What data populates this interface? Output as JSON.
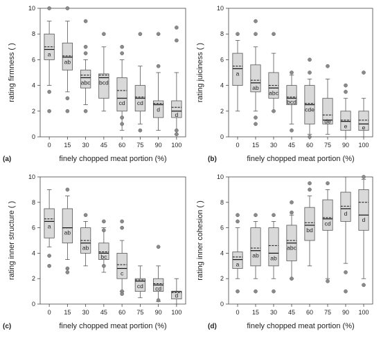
{
  "chart_data": [
    {
      "type": "box",
      "panel": "(a)",
      "ylabel": "rating firmness (  )",
      "xlabel": "finely chopped meat portion (%)",
      "ylim": [
        0,
        10
      ],
      "yticks": [
        0,
        2,
        4,
        6,
        8,
        10
      ],
      "categories": [
        "0",
        "15",
        "30",
        "45",
        "60",
        "75",
        "90",
        "100"
      ],
      "boxes": [
        {
          "q1": 6.0,
          "median": 6.8,
          "q3": 8.0,
          "mean": 7.0,
          "whisker_low": 4.0,
          "whisker_high": 9.0,
          "outliers": [
            10.0,
            3.5,
            2.0
          ],
          "letter": "a"
        },
        {
          "q1": 5.2,
          "median": 6.2,
          "q3": 7.3,
          "mean": 6.3,
          "whisker_low": 3.5,
          "whisker_high": 9.0,
          "outliers": [
            10.0,
            3.0,
            2.0
          ],
          "letter": "ab"
        },
        {
          "q1": 3.8,
          "median": 4.6,
          "q3": 5.2,
          "mean": 4.8,
          "whisker_low": 2.5,
          "whisker_high": 6.0,
          "outliers": [
            9.0,
            7.0,
            6.5,
            2.0
          ],
          "letter": "abc"
        },
        {
          "q1": 3.0,
          "median": 4.6,
          "q3": 4.9,
          "mean": 4.8,
          "whisker_low": 2.0,
          "whisker_high": 7.0,
          "outliers": [
            8.0
          ],
          "letter": "bcd"
        },
        {
          "q1": 2.0,
          "median": 3.0,
          "q3": 4.6,
          "mean": 3.6,
          "whisker_low": 0.5,
          "whisker_high": 6.0,
          "outliers": [
            7.0,
            6.5,
            1.5,
            1.0
          ],
          "letter": "cd"
        },
        {
          "q1": 2.0,
          "median": 3.0,
          "q3": 4.0,
          "mean": 3.1,
          "whisker_low": 1.0,
          "whisker_high": 5.5,
          "outliers": [
            8.0,
            0.5
          ],
          "letter": "cd"
        },
        {
          "q1": 1.5,
          "median": 2.5,
          "q3": 2.8,
          "mean": 2.6,
          "whisker_low": 0.5,
          "whisker_high": 5.0,
          "outliers": [
            8.0,
            5.5
          ],
          "letter": "d"
        },
        {
          "q1": 1.5,
          "median": 2.0,
          "q3": 2.8,
          "mean": 2.3,
          "whisker_low": 0.2,
          "whisker_high": 5.0,
          "outliers": [
            8.5,
            7.5,
            0.5,
            0.2
          ],
          "letter": "d"
        }
      ]
    },
    {
      "type": "box",
      "panel": "(b)",
      "ylabel": "rating juiciness (  )",
      "xlabel": "finely chopped meat portion (%)",
      "ylim": [
        0,
        10
      ],
      "yticks": [
        0,
        2,
        4,
        6,
        8,
        10
      ],
      "categories": [
        "0",
        "15",
        "30",
        "45",
        "60",
        "75",
        "90",
        "100"
      ],
      "boxes": [
        {
          "q1": 4.0,
          "median": 5.3,
          "q3": 6.5,
          "mean": 5.5,
          "whisker_low": 2.0,
          "whisker_high": 7.5,
          "outliers": [
            8.0
          ],
          "letter": "a"
        },
        {
          "q1": 3.5,
          "median": 4.2,
          "q3": 5.6,
          "mean": 4.4,
          "whisker_low": 2.0,
          "whisker_high": 7.0,
          "outliers": [
            9.0,
            8.0,
            1.5,
            1.0
          ],
          "letter": "ab"
        },
        {
          "q1": 3.0,
          "median": 3.8,
          "q3": 5.0,
          "mean": 4.0,
          "whisker_low": 2.0,
          "whisker_high": 6.5,
          "outliers": [
            8.0,
            2.0
          ],
          "letter": "abc"
        },
        {
          "q1": 2.5,
          "median": 3.0,
          "q3": 4.0,
          "mean": 3.1,
          "whisker_low": 1.0,
          "whisker_high": 4.8,
          "outliers": [
            5.0,
            0.5
          ],
          "letter": "bcd"
        },
        {
          "q1": 1.0,
          "median": 2.5,
          "q3": 4.0,
          "mean": 2.6,
          "whisker_low": 0.2,
          "whisker_high": 4.5,
          "outliers": [
            6.0,
            5.0,
            0.0
          ],
          "letter": "cde"
        },
        {
          "q1": 1.0,
          "median": 1.3,
          "q3": 3.0,
          "mean": 1.7,
          "whisker_low": 0.2,
          "whisker_high": 4.5,
          "outliers": [
            5.5
          ],
          "letter": "de"
        },
        {
          "q1": 0.5,
          "median": 1.2,
          "q3": 2.0,
          "mean": 1.3,
          "whisker_low": 0.0,
          "whisker_high": 3.0,
          "outliers": [
            4.0,
            3.5
          ],
          "letter": "e"
        },
        {
          "q1": 0.5,
          "median": 1.0,
          "q3": 2.0,
          "mean": 1.3,
          "whisker_low": 0.0,
          "whisker_high": 3.0,
          "outliers": [
            5.0
          ],
          "letter": "e"
        }
      ]
    },
    {
      "type": "box",
      "panel": "(c)",
      "ylabel": "rating inner structure (  )",
      "xlabel": "finely chopped meat portion (%)",
      "ylim": [
        0,
        10
      ],
      "yticks": [
        0,
        2,
        4,
        6,
        8,
        10
      ],
      "categories": [
        "0",
        "15",
        "30",
        "45",
        "60",
        "75",
        "90",
        "100"
      ],
      "boxes": [
        {
          "q1": 5.2,
          "median": 6.5,
          "q3": 7.5,
          "mean": 6.7,
          "whisker_low": 4.5,
          "whisker_high": 9.0,
          "outliers": [
            3.8,
            3.0
          ],
          "letter": "a"
        },
        {
          "q1": 4.8,
          "median": 6.0,
          "q3": 7.5,
          "mean": 6.0,
          "whisker_low": 3.5,
          "whisker_high": 8.5,
          "outliers": [
            9.0,
            2.8,
            2.5
          ],
          "letter": "ab"
        },
        {
          "q1": 4.0,
          "median": 4.8,
          "q3": 6.0,
          "mean": 5.0,
          "whisker_low": 3.0,
          "whisker_high": 6.5,
          "outliers": [
            7.0
          ],
          "letter": "ab"
        },
        {
          "q1": 3.5,
          "median": 4.0,
          "q3": 4.8,
          "mean": 4.1,
          "whisker_low": 2.5,
          "whisker_high": 6.0,
          "outliers": [
            6.5,
            5.8,
            3.0
          ],
          "letter": "bc"
        },
        {
          "q1": 2.0,
          "median": 2.8,
          "q3": 4.0,
          "mean": 3.1,
          "whisker_low": 1.0,
          "whisker_high": 5.0,
          "outliers": [
            6.5,
            6.0,
            1.0,
            0.8
          ],
          "letter": "c"
        },
        {
          "q1": 1.0,
          "median": 1.8,
          "q3": 2.0,
          "mean": 1.9,
          "whisker_low": 0.5,
          "whisker_high": 3.0,
          "outliers": [],
          "letter": "cd"
        },
        {
          "q1": 1.0,
          "median": 1.5,
          "q3": 2.0,
          "mean": 1.6,
          "whisker_low": 0.2,
          "whisker_high": 3.0,
          "outliers": [
            4.5,
            0.3
          ],
          "letter": "cd"
        },
        {
          "q1": 0.4,
          "median": 1.0,
          "q3": 1.0,
          "mean": 0.9,
          "whisker_low": 0.0,
          "whisker_high": 2.0,
          "outliers": [],
          "letter": "d"
        }
      ]
    },
    {
      "type": "box",
      "panel": "(d)",
      "ylabel": "rating inner cohesion (  )",
      "xlabel": "finely chopped meat portion (%)",
      "ylim": [
        0,
        10
      ],
      "yticks": [
        0,
        2,
        4,
        6,
        8,
        10
      ],
      "categories": [
        "0",
        "15",
        "30",
        "45",
        "60",
        "75",
        "90",
        "100"
      ],
      "boxes": [
        {
          "q1": 2.8,
          "median": 3.5,
          "q3": 4.1,
          "mean": 3.7,
          "whisker_low": 2.0,
          "whisker_high": 6.0,
          "outliers": [
            7.0,
            6.5,
            1.0
          ],
          "letter": "a"
        },
        {
          "q1": 3.0,
          "median": 4.2,
          "q3": 6.0,
          "mean": 4.4,
          "whisker_low": 2.0,
          "whisker_high": 6.5,
          "outliers": [
            7.0,
            1.0
          ],
          "letter": "ab"
        },
        {
          "q1": 3.0,
          "median": 4.0,
          "q3": 6.0,
          "mean": 4.6,
          "whisker_low": 2.0,
          "whisker_high": 6.5,
          "outliers": [
            7.0,
            1.0
          ],
          "letter": "ab"
        },
        {
          "q1": 3.4,
          "median": 4.8,
          "q3": 6.2,
          "mean": 5.0,
          "whisker_low": 2.0,
          "whisker_high": 7.0,
          "outliers": [
            8.0,
            7.2,
            2.0
          ],
          "letter": "abc"
        },
        {
          "q1": 5.0,
          "median": 6.2,
          "q3": 7.6,
          "mean": 6.4,
          "whisker_low": 3.0,
          "whisker_high": 8.5,
          "outliers": [
            9.5,
            9.0
          ],
          "letter": "bd"
        },
        {
          "q1": 5.8,
          "median": 6.7,
          "q3": 8.2,
          "mean": 6.8,
          "whisker_low": 2.0,
          "whisker_high": 9.0,
          "outliers": [
            9.5,
            1.8
          ],
          "letter": "cd"
        },
        {
          "q1": 6.5,
          "median": 7.5,
          "q3": 8.8,
          "mean": 7.7,
          "whisker_low": 3.2,
          "whisker_high": 10.0,
          "outliers": [
            2.5,
            1.0
          ],
          "letter": "d"
        },
        {
          "q1": 5.8,
          "median": 7.0,
          "q3": 9.0,
          "mean": 8.0,
          "whisker_low": 2.0,
          "whisker_high": 9.8,
          "outliers": [
            10.0,
            1.5
          ],
          "letter": "d"
        }
      ]
    }
  ]
}
